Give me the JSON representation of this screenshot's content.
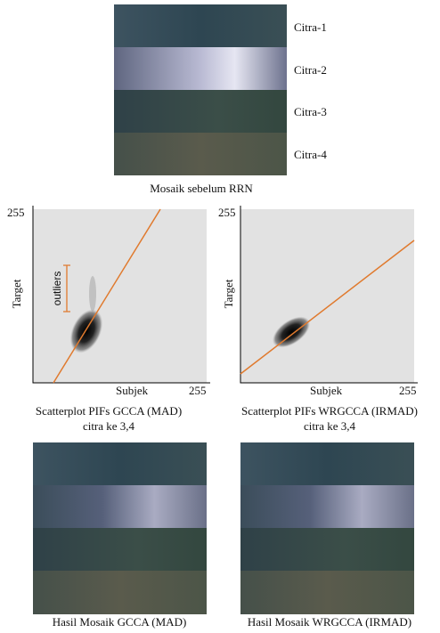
{
  "top_mosaic": {
    "strip_labels": [
      "Citra-1",
      "Citra-2",
      "Citra-3",
      "Citra-4"
    ],
    "caption": "Mosaik sebelum RRN"
  },
  "scatterplots": [
    {
      "y_max_label": "255",
      "y_axis_label": "Target",
      "annotation": "outliers",
      "x_axis_label": "Subjek",
      "x_max_label": "255",
      "caption": [
        "Scatterplot PIFs GCCA (MAD)",
        "citra ke 3,4"
      ]
    },
    {
      "y_max_label": "255",
      "y_axis_label": "Target",
      "x_axis_label": "Subjek",
      "x_max_label": "255",
      "caption": [
        "Scatterplot PIFs WRGCCA (IRMAD)",
        "citra ke 3,4"
      ]
    }
  ],
  "result_mosaics": [
    {
      "caption": "Hasil Mosaik GCCA (MAD)"
    },
    {
      "caption": "Hasil Mosaik WRGCCA (IRMAD)"
    }
  ]
}
